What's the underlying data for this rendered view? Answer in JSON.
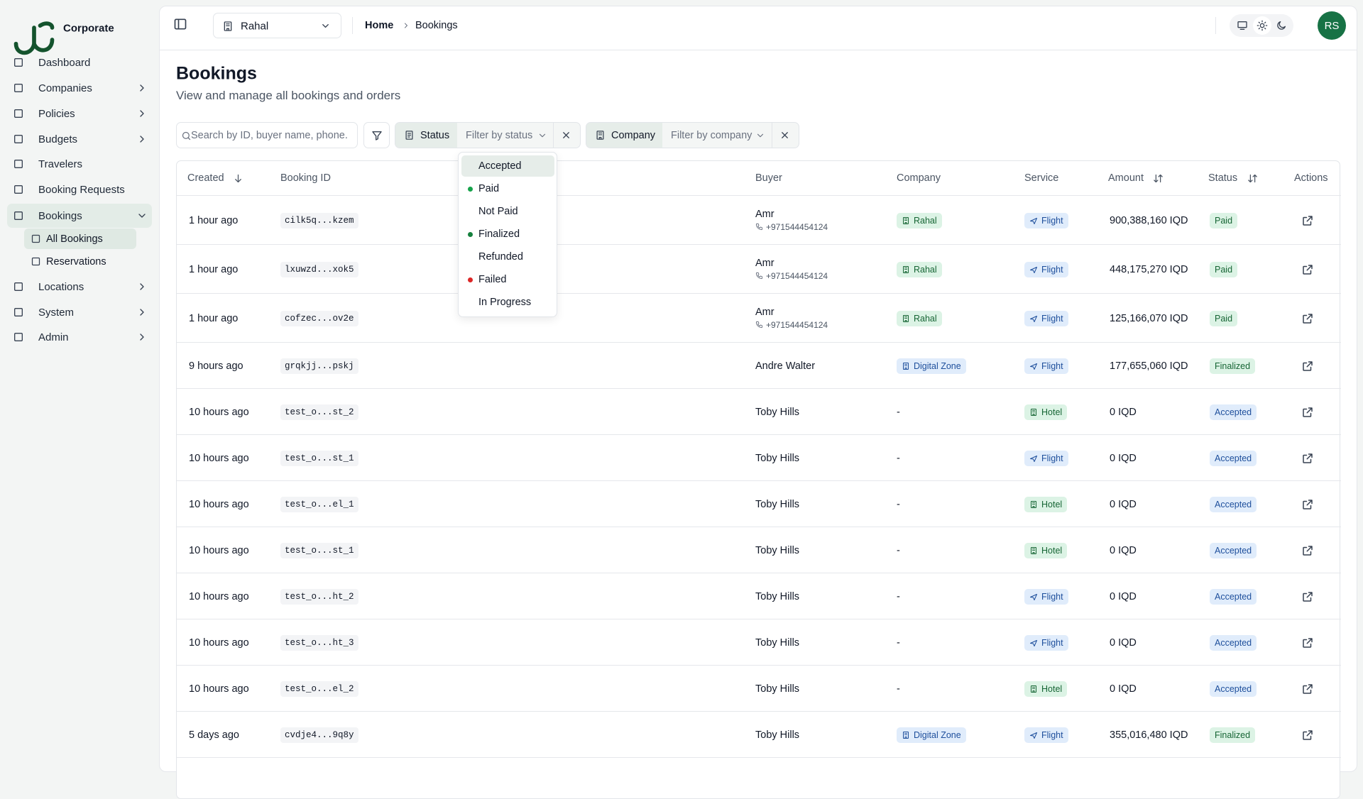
{
  "sidebar": {
    "brand": "Corporate",
    "items": [
      {
        "label": "Dashboard",
        "has_children": false
      },
      {
        "label": "Companies",
        "has_children": true
      },
      {
        "label": "Policies",
        "has_children": true
      },
      {
        "label": "Budgets",
        "has_children": true
      },
      {
        "label": "Travelers",
        "has_children": false
      },
      {
        "label": "Booking Requests",
        "has_children": false
      },
      {
        "label": "Bookings",
        "has_children": true,
        "open": true,
        "children": [
          "All Bookings",
          "Reservations"
        ]
      },
      {
        "label": "Locations",
        "has_children": true
      },
      {
        "label": "System",
        "has_children": true
      },
      {
        "label": "Admin",
        "has_children": true
      }
    ]
  },
  "header": {
    "org": "Rahal",
    "breadcrumb": [
      "Home",
      "Bookings"
    ],
    "avatar": "RS"
  },
  "page": {
    "title": "Bookings",
    "subtitle": "View and manage all bookings and orders"
  },
  "filters": {
    "search_placeholder": "Search by ID, buyer name, phone.",
    "status": "Status",
    "status_placeholder": "Filter by status",
    "company": "Company",
    "company_placeholder": "Filter by company"
  },
  "status_dropdown": {
    "options": [
      {
        "label": "Accepted",
        "dot": null
      },
      {
        "label": "Paid",
        "dot": "#16a34a"
      },
      {
        "label": "Not Paid",
        "dot": null
      },
      {
        "label": "Finalized",
        "dot": "#15803d"
      },
      {
        "label": "Refunded",
        "dot": null
      },
      {
        "label": "Failed",
        "dot": "#dc2626"
      },
      {
        "label": "In Progress",
        "dot": null
      }
    ]
  },
  "table": {
    "columns": [
      "Created",
      "Booking ID",
      "Buyer",
      "Company",
      "Service",
      "Amount",
      "Status",
      "Actions"
    ],
    "rows": [
      {
        "created": "1 hour ago",
        "id": "cilk5q...kzem",
        "buyer": "Amr",
        "phone": "+971544454124",
        "company": "Rahal",
        "company_color": "green",
        "service": "Flight",
        "service_color": "blue",
        "amount": "900,388,160 IQD",
        "status": "Paid",
        "status_color": "green"
      },
      {
        "created": "1 hour ago",
        "id": "lxuwzd...xok5",
        "buyer": "Amr",
        "phone": "+971544454124",
        "company": "Rahal",
        "company_color": "green",
        "service": "Flight",
        "service_color": "blue",
        "amount": "448,175,270 IQD",
        "status": "Paid",
        "status_color": "green"
      },
      {
        "created": "1 hour ago",
        "id": "cofzec...ov2e",
        "buyer": "Amr",
        "phone": "+971544454124",
        "company": "Rahal",
        "company_color": "green",
        "service": "Flight",
        "service_color": "blue",
        "amount": "125,166,070 IQD",
        "status": "Paid",
        "status_color": "green"
      },
      {
        "created": "9 hours ago",
        "id": "grqkjj...pskj",
        "buyer": "Andre Walter",
        "phone": null,
        "company": "Digital Zone",
        "company_color": "blue",
        "service": "Flight",
        "service_color": "blue",
        "amount": "177,655,060 IQD",
        "status": "Finalized",
        "status_color": "green"
      },
      {
        "created": "10 hours ago",
        "id": "test_o...st_2",
        "buyer": "Toby Hills",
        "phone": null,
        "company": "-",
        "company_color": null,
        "service": "Hotel",
        "service_color": "green",
        "amount": "0 IQD",
        "status": "Accepted",
        "status_color": "blue"
      },
      {
        "created": "10 hours ago",
        "id": "test_o...st_1",
        "buyer": "Toby Hills",
        "phone": null,
        "company": "-",
        "company_color": null,
        "service": "Flight",
        "service_color": "blue",
        "amount": "0 IQD",
        "status": "Accepted",
        "status_color": "blue"
      },
      {
        "created": "10 hours ago",
        "id": "test_o...el_1",
        "buyer": "Toby Hills",
        "phone": null,
        "company": "-",
        "company_color": null,
        "service": "Hotel",
        "service_color": "green",
        "amount": "0 IQD",
        "status": "Accepted",
        "status_color": "blue"
      },
      {
        "created": "10 hours ago",
        "id": "test_o...st_1",
        "buyer": "Toby Hills",
        "phone": null,
        "company": "-",
        "company_color": null,
        "service": "Hotel",
        "service_color": "green",
        "amount": "0 IQD",
        "status": "Accepted",
        "status_color": "blue"
      },
      {
        "created": "10 hours ago",
        "id": "test_o...ht_2",
        "buyer": "Toby Hills",
        "phone": null,
        "company": "-",
        "company_color": null,
        "service": "Flight",
        "service_color": "blue",
        "amount": "0 IQD",
        "status": "Accepted",
        "status_color": "blue"
      },
      {
        "created": "10 hours ago",
        "id": "test_o...ht_3",
        "buyer": "Toby Hills",
        "phone": null,
        "company": "-",
        "company_color": null,
        "service": "Flight",
        "service_color": "blue",
        "amount": "0 IQD",
        "status": "Accepted",
        "status_color": "blue"
      },
      {
        "created": "10 hours ago",
        "id": "test_o...el_2",
        "buyer": "Toby Hills",
        "phone": null,
        "company": "-",
        "company_color": null,
        "service": "Hotel",
        "service_color": "green",
        "amount": "0 IQD",
        "status": "Accepted",
        "status_color": "blue"
      },
      {
        "created": "5 days ago",
        "id": "cvdje4...9q8y",
        "buyer": "Toby Hills",
        "phone": null,
        "company": "Digital Zone",
        "company_color": "blue",
        "service": "Flight",
        "service_color": "blue",
        "amount": "355,016,480 IQD",
        "status": "Finalized",
        "status_color": "green"
      }
    ]
  }
}
